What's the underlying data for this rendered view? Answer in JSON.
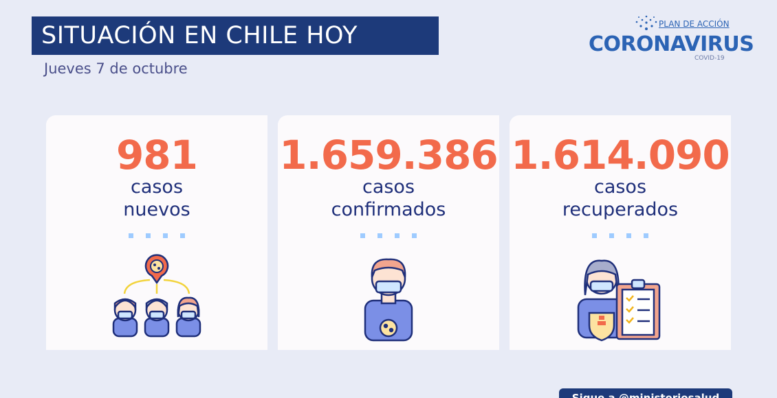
{
  "header": {
    "title": "SITUACIÓN EN CHILE HOY",
    "date": "Jueves 7 de octubre"
  },
  "logo": {
    "plan": "PLAN DE ACCIÓN",
    "name": "CORONAVIRUS",
    "covid": "COVID-19"
  },
  "cards": [
    {
      "value": "981",
      "line1": "casos",
      "line2": "nuevos",
      "icon": "contagion-people-icon"
    },
    {
      "value": "1.659.386",
      "line1": "casos",
      "line2": "confirmados",
      "icon": "masked-person-virus-icon"
    },
    {
      "value": "1.614.090",
      "line1": "casos",
      "line2": "recuperados",
      "icon": "recovered-clipboard-icon"
    }
  ],
  "footer": {
    "tab_label": "Sigue a @ministeriosalud"
  },
  "colors": {
    "background": "#e8ebf6",
    "title_bar": "#1d3a7a",
    "value": "#f26a4b",
    "label": "#1f2f7a",
    "dots": "#9ecbff"
  }
}
